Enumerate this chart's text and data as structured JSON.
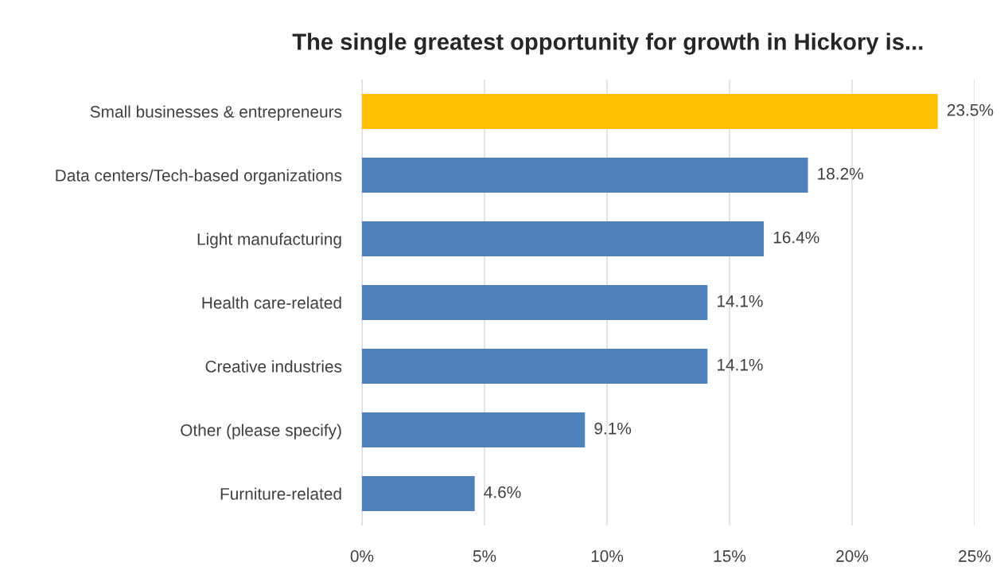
{
  "chart_data": {
    "type": "bar",
    "orientation": "horizontal",
    "title": "The single greatest opportunity for growth in Hickory is...",
    "categories": [
      "Small businesses & entrepreneurs",
      "Data centers/Tech-based organizations",
      "Light manufacturing",
      "Health care-related",
      "Creative industries",
      "Other (please specify)",
      "Furniture-related"
    ],
    "values": [
      23.5,
      18.2,
      16.4,
      14.1,
      14.1,
      9.1,
      4.6
    ],
    "colors": [
      "#ffc000",
      "#4f81bd",
      "#4f81bd",
      "#4f81bd",
      "#4f81bd",
      "#4f81bd",
      "#4f81bd"
    ],
    "value_labels": [
      "23.5%",
      "18.2%",
      "16.4%",
      "14.1%",
      "14.1%",
      "9.1%",
      "4.6%"
    ],
    "xlim": [
      0,
      25
    ],
    "xticks": [
      {
        "value": 0,
        "label": "0%"
      },
      {
        "value": 5,
        "label": "5%"
      },
      {
        "value": 10,
        "label": "10%"
      },
      {
        "value": 15,
        "label": "15%"
      },
      {
        "value": 20,
        "label": "20%"
      },
      {
        "value": 25,
        "label": "25%"
      }
    ],
    "grid": "x"
  }
}
